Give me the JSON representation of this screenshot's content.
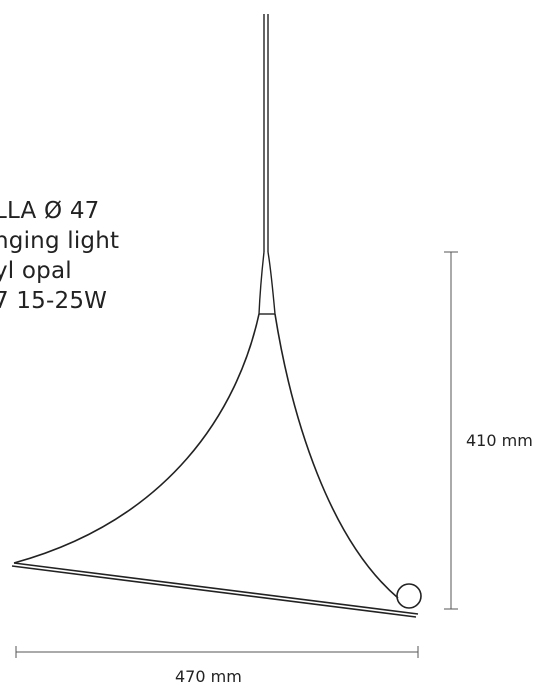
{
  "product": {
    "name_line": "LLA Ø 47",
    "type_line": "nging light",
    "material_line": "yl opal",
    "lamp_line": "7 15-25W"
  },
  "dimensions": {
    "height": "410 mm",
    "width": "470 mm"
  },
  "colors": {
    "line": "#222222",
    "dimension_line": "#555555",
    "background": "#ffffff"
  }
}
